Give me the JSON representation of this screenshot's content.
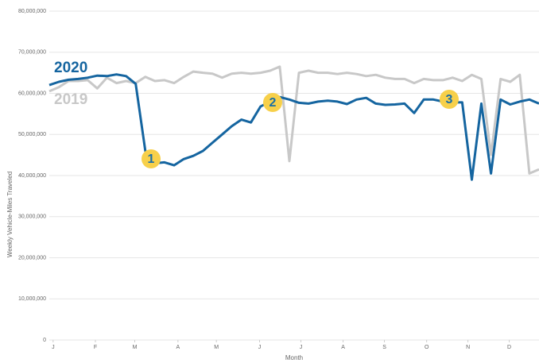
{
  "chart_data": {
    "type": "line",
    "x_label": "Month",
    "y_label": "Weekly Vehicle-Miles Traveled",
    "x": [
      1,
      2,
      3,
      4,
      5,
      6,
      7,
      8,
      9,
      10,
      11,
      12,
      13,
      14,
      15,
      16,
      17,
      18,
      19,
      20,
      21,
      22,
      23,
      24,
      25,
      26,
      27,
      28,
      29,
      30,
      31,
      32,
      33,
      34,
      35,
      36,
      37,
      38,
      39,
      40,
      41,
      42,
      43,
      44,
      45,
      46,
      47,
      48,
      49,
      50,
      51,
      52
    ],
    "xlim": [
      1,
      52
    ],
    "xticks": [
      {
        "value": 1.4,
        "label": "J"
      },
      {
        "value": 5.8,
        "label": "F"
      },
      {
        "value": 9.9,
        "label": "M"
      },
      {
        "value": 14.4,
        "label": "A"
      },
      {
        "value": 18.4,
        "label": "M"
      },
      {
        "value": 22.9,
        "label": "J"
      },
      {
        "value": 27.2,
        "label": "J"
      },
      {
        "value": 31.6,
        "label": "A"
      },
      {
        "value": 35.9,
        "label": "S"
      },
      {
        "value": 40.3,
        "label": "O"
      },
      {
        "value": 44.6,
        "label": "N"
      },
      {
        "value": 48.9,
        "label": "D"
      }
    ],
    "ylim": [
      0,
      80000000
    ],
    "yticks": [
      0,
      {
        "value": 10000000,
        "label": "10,000,000"
      },
      {
        "value": 20000000,
        "label": "20,000,000"
      },
      {
        "value": 30000000,
        "label": "30,000,000"
      },
      {
        "value": 40000000,
        "label": "40,000,000"
      },
      {
        "value": 50000000,
        "label": "50,000,000"
      },
      {
        "value": 60000000,
        "label": "60,000,000"
      },
      {
        "value": 70000000,
        "label": "70,000,000"
      },
      {
        "value": 80000000,
        "label": "80,000,000"
      }
    ],
    "grid": true,
    "series": [
      {
        "name": "2019",
        "color": "#c8c8c8",
        "values": [
          60500000,
          61500000,
          63000000,
          63000000,
          63200000,
          61200000,
          63800000,
          62500000,
          63000000,
          62500000,
          64000000,
          63000000,
          63200000,
          62500000,
          64000000,
          65300000,
          65000000,
          64800000,
          63800000,
          64800000,
          65000000,
          64800000,
          65000000,
          65500000,
          66500000,
          43500000,
          65000000,
          65500000,
          65000000,
          65000000,
          64700000,
          65000000,
          64700000,
          64200000,
          64500000,
          63800000,
          63500000,
          63500000,
          62500000,
          63500000,
          63200000,
          63200000,
          63800000,
          63000000,
          64500000,
          63500000,
          45000000,
          63500000,
          62800000,
          64500000,
          40500000,
          41500000
        ]
      },
      {
        "name": "2020",
        "color": "#1565a0",
        "values": [
          62000000,
          62800000,
          63300000,
          63500000,
          63800000,
          64300000,
          64200000,
          64600000,
          64200000,
          62300000,
          46000000,
          43000000,
          43200000,
          42500000,
          44000000,
          44800000,
          46000000,
          48000000,
          50000000,
          52000000,
          53600000,
          52900000,
          56800000,
          58000000,
          59100000,
          58500000,
          57700000,
          57500000,
          58000000,
          58200000,
          58000000,
          57400000,
          58500000,
          58900000,
          57500000,
          57200000,
          57300000,
          57500000,
          55200000,
          58500000,
          58500000,
          58000000,
          57800000,
          57800000,
          39000000,
          57500000,
          40500000,
          58500000,
          57300000,
          58000000,
          58500000,
          57500000
        ]
      }
    ],
    "annotations": [
      "1",
      "2",
      "3"
    ]
  }
}
